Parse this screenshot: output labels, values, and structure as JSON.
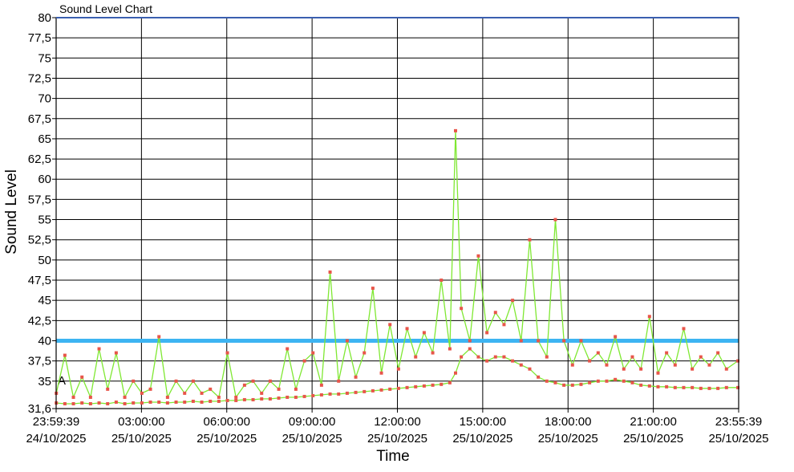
{
  "chart_data": {
    "type": "line",
    "title": "Sound Level Chart",
    "xlabel": "Time",
    "ylabel": "Sound Level",
    "ylim": [
      31.6,
      80
    ],
    "y_ticks": [
      "31,6",
      "35",
      "37,5",
      "40",
      "42,5",
      "45",
      "47,5",
      "50",
      "52,5",
      "55",
      "57,5",
      "60",
      "62,5",
      "65",
      "67,5",
      "70",
      "72,5",
      "75",
      "77,5",
      "80"
    ],
    "x_range_hours": [
      -0.0058,
      23.9275
    ],
    "x_ticks": [
      {
        "time": "23:59:39",
        "date": "24/10/2025"
      },
      {
        "time": "03:00:00",
        "date": "25/10/2025"
      },
      {
        "time": "06:00:00",
        "date": "25/10/2025"
      },
      {
        "time": "09:00:00",
        "date": "25/10/2025"
      },
      {
        "time": "12:00:00",
        "date": "25/10/2025"
      },
      {
        "time": "15:00:00",
        "date": "25/10/2025"
      },
      {
        "time": "18:00:00",
        "date": "25/10/2025"
      },
      {
        "time": "21:00:00",
        "date": "25/10/2025"
      },
      {
        "time": "23:55:39",
        "date": "25/10/2025"
      }
    ],
    "threshold": 40,
    "threshold_label": "A",
    "grid": true,
    "series": [
      {
        "role": "peak",
        "x": [
          0,
          0.3,
          0.6,
          0.9,
          1.2,
          1.5,
          1.8,
          2.1,
          2.4,
          2.7,
          3.0,
          3.3,
          3.6,
          3.9,
          4.2,
          4.5,
          4.8,
          5.1,
          5.4,
          5.7,
          6.0,
          6.3,
          6.6,
          6.9,
          7.2,
          7.5,
          7.8,
          8.1,
          8.4,
          8.7,
          9.0,
          9.3,
          9.6,
          9.9,
          10.2,
          10.5,
          10.8,
          11.1,
          11.4,
          11.7,
          12.0,
          12.3,
          12.6,
          12.9,
          13.2,
          13.5,
          13.8,
          14.0,
          14.2,
          14.5,
          14.8,
          15.1,
          15.4,
          15.7,
          16.0,
          16.3,
          16.6,
          16.9,
          17.2,
          17.5,
          17.8,
          18.1,
          18.4,
          18.7,
          19.0,
          19.3,
          19.6,
          19.9,
          20.2,
          20.5,
          20.8,
          21.1,
          21.4,
          21.7,
          22.0,
          22.3,
          22.6,
          22.9,
          23.2,
          23.5,
          23.9
        ],
        "values": [
          33.5,
          38.2,
          33.0,
          35.5,
          33.0,
          39.0,
          34.0,
          38.5,
          33.0,
          35.0,
          33.5,
          34.0,
          40.5,
          33.0,
          35.0,
          33.5,
          35.0,
          33.5,
          34.0,
          33.0,
          38.5,
          33.0,
          34.5,
          35.0,
          33.5,
          35.0,
          34.0,
          39.0,
          34.0,
          37.5,
          38.5,
          34.5,
          48.5,
          35.0,
          40.0,
          35.5,
          38.5,
          46.5,
          36.0,
          42.0,
          36.5,
          41.5,
          38.0,
          41.0,
          38.5,
          47.5,
          39.0,
          66.0,
          44.0,
          40.0,
          50.5,
          41.0,
          43.5,
          42.0,
          45.0,
          40.0,
          52.5,
          40.0,
          38.0,
          55.0,
          40.0,
          37.0,
          40.0,
          37.5,
          38.5,
          37.0,
          40.5,
          36.5,
          38.0,
          36.5,
          43.0,
          36.0,
          38.5,
          37.0,
          41.5,
          36.5,
          38.0,
          37.0,
          38.5,
          36.5,
          37.5
        ]
      },
      {
        "role": "level",
        "x": [
          0,
          0.3,
          0.6,
          0.9,
          1.2,
          1.5,
          1.8,
          2.1,
          2.4,
          2.7,
          3.0,
          3.3,
          3.6,
          3.9,
          4.2,
          4.5,
          4.8,
          5.1,
          5.4,
          5.7,
          6.0,
          6.3,
          6.6,
          6.9,
          7.2,
          7.5,
          7.8,
          8.1,
          8.4,
          8.7,
          9.0,
          9.3,
          9.6,
          9.9,
          10.2,
          10.5,
          10.8,
          11.1,
          11.4,
          11.7,
          12.0,
          12.3,
          12.6,
          12.9,
          13.2,
          13.5,
          13.8,
          14.0,
          14.2,
          14.5,
          14.8,
          15.1,
          15.4,
          15.7,
          16.0,
          16.3,
          16.6,
          16.9,
          17.2,
          17.5,
          17.8,
          18.1,
          18.4,
          18.7,
          19.0,
          19.3,
          19.6,
          19.9,
          20.2,
          20.5,
          20.8,
          21.1,
          21.4,
          21.7,
          22.0,
          22.3,
          22.6,
          22.9,
          23.2,
          23.5,
          23.9
        ],
        "values": [
          32.3,
          32.2,
          32.2,
          32.3,
          32.2,
          32.3,
          32.2,
          32.4,
          32.2,
          32.3,
          32.3,
          32.4,
          32.4,
          32.3,
          32.4,
          32.4,
          32.5,
          32.4,
          32.5,
          32.5,
          32.6,
          32.6,
          32.7,
          32.7,
          32.8,
          32.8,
          32.9,
          33.0,
          33.0,
          33.1,
          33.2,
          33.3,
          33.4,
          33.4,
          33.5,
          33.6,
          33.7,
          33.8,
          33.9,
          34.0,
          34.1,
          34.2,
          34.3,
          34.4,
          34.5,
          34.6,
          34.8,
          36.0,
          38.0,
          39.0,
          38.0,
          37.5,
          38.0,
          38.0,
          37.5,
          37.0,
          36.5,
          35.5,
          35.0,
          34.8,
          34.5,
          34.5,
          34.6,
          34.8,
          35.0,
          35.0,
          35.2,
          35.0,
          34.8,
          34.5,
          34.4,
          34.3,
          34.3,
          34.2,
          34.2,
          34.2,
          34.1,
          34.1,
          34.1,
          34.2,
          34.2
        ]
      }
    ]
  },
  "colors": {
    "level_line": "#7FE832",
    "marker": "#E8554A",
    "threshold": "#3DB4F2",
    "grid": "#000000",
    "top_line": "#3A5FB0"
  }
}
